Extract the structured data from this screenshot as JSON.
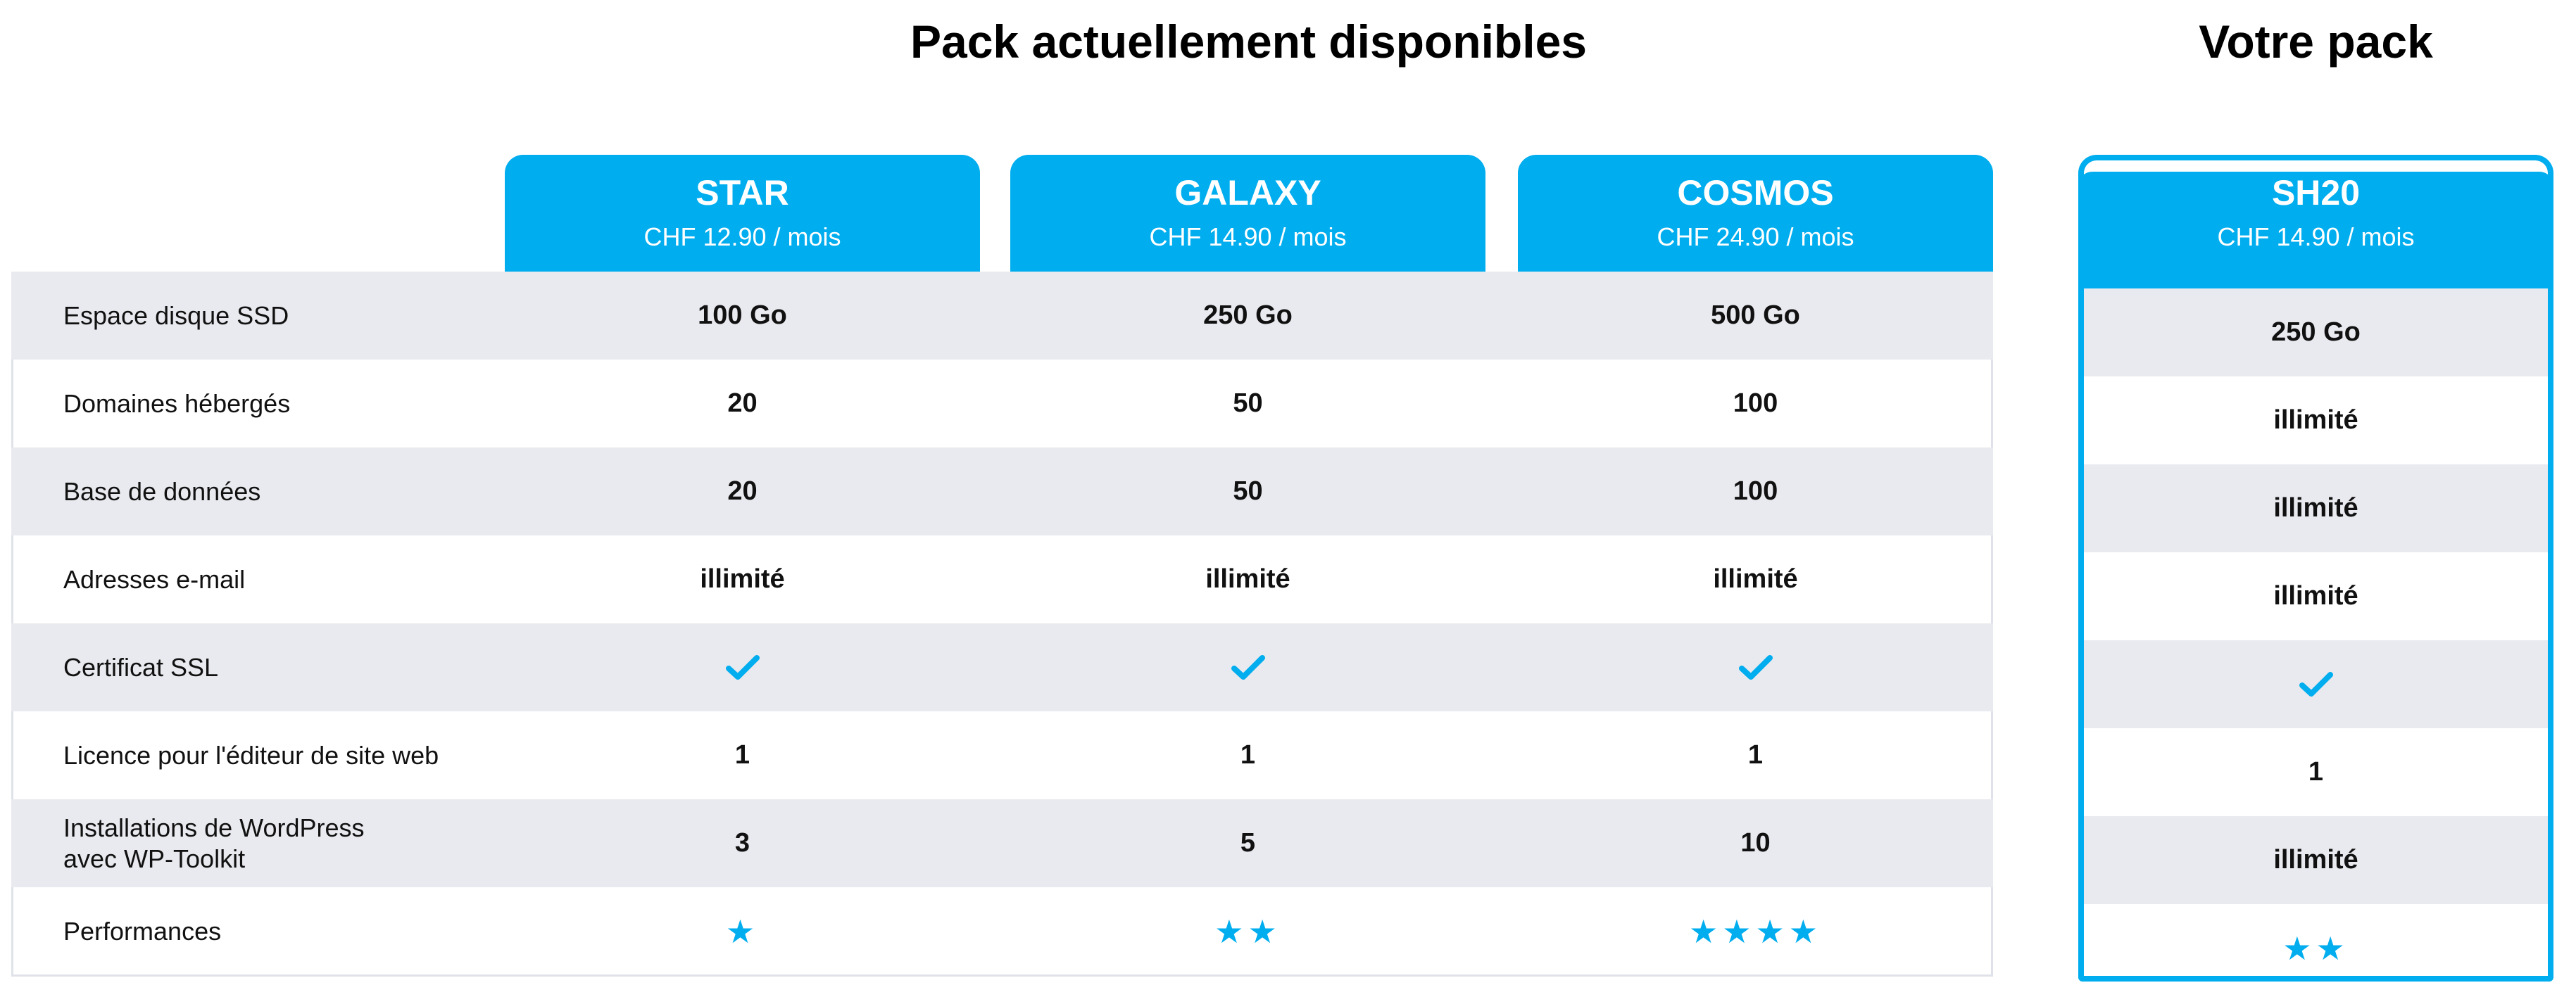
{
  "headings": {
    "available": "Pack actuellement disponibles",
    "yours": "Votre pack"
  },
  "colors": {
    "accent": "#00adee",
    "row_alt": "#e9eaef"
  },
  "plans": [
    {
      "name": "STAR",
      "price": "CHF 12.90 / mois"
    },
    {
      "name": "GALAXY",
      "price": "CHF 14.90 / mois"
    },
    {
      "name": "COSMOS",
      "price": "CHF 24.90 / mois"
    }
  ],
  "current_plan": {
    "name": "SH20",
    "price": "CHF 14.90 / mois"
  },
  "features": [
    {
      "label": "Espace disque SSD",
      "values": [
        "100 Go",
        "250 Go",
        "500 Go"
      ],
      "current": "250 Go"
    },
    {
      "label": "Domaines hébergés",
      "values": [
        "20",
        "50",
        "100"
      ],
      "current": "illimité"
    },
    {
      "label": "Base de données",
      "values": [
        "20",
        "50",
        "100"
      ],
      "current": "illimité"
    },
    {
      "label": "Adresses e-mail",
      "values": [
        "illimité",
        "illimité",
        "illimité"
      ],
      "current": "illimité"
    },
    {
      "label": "Certificat SSL",
      "values": [
        "check-icon",
        "check-icon",
        "check-icon"
      ],
      "current": "check-icon"
    },
    {
      "label": "Licence pour l'éditeur de site web",
      "values": [
        "1",
        "1",
        "1"
      ],
      "current": "1"
    },
    {
      "label": "Installations de WordPress\navec WP-Toolkit",
      "values": [
        "3",
        "5",
        "10"
      ],
      "current": "illimité"
    },
    {
      "label": "Performances",
      "values": [
        "★",
        "★★",
        "★★★★"
      ],
      "current": "★★"
    }
  ],
  "icons": {
    "ssl": "check-icon",
    "performance": "star-icon"
  },
  "performance_ratings": {
    "plans": [
      1,
      2,
      4
    ],
    "current": 2
  }
}
